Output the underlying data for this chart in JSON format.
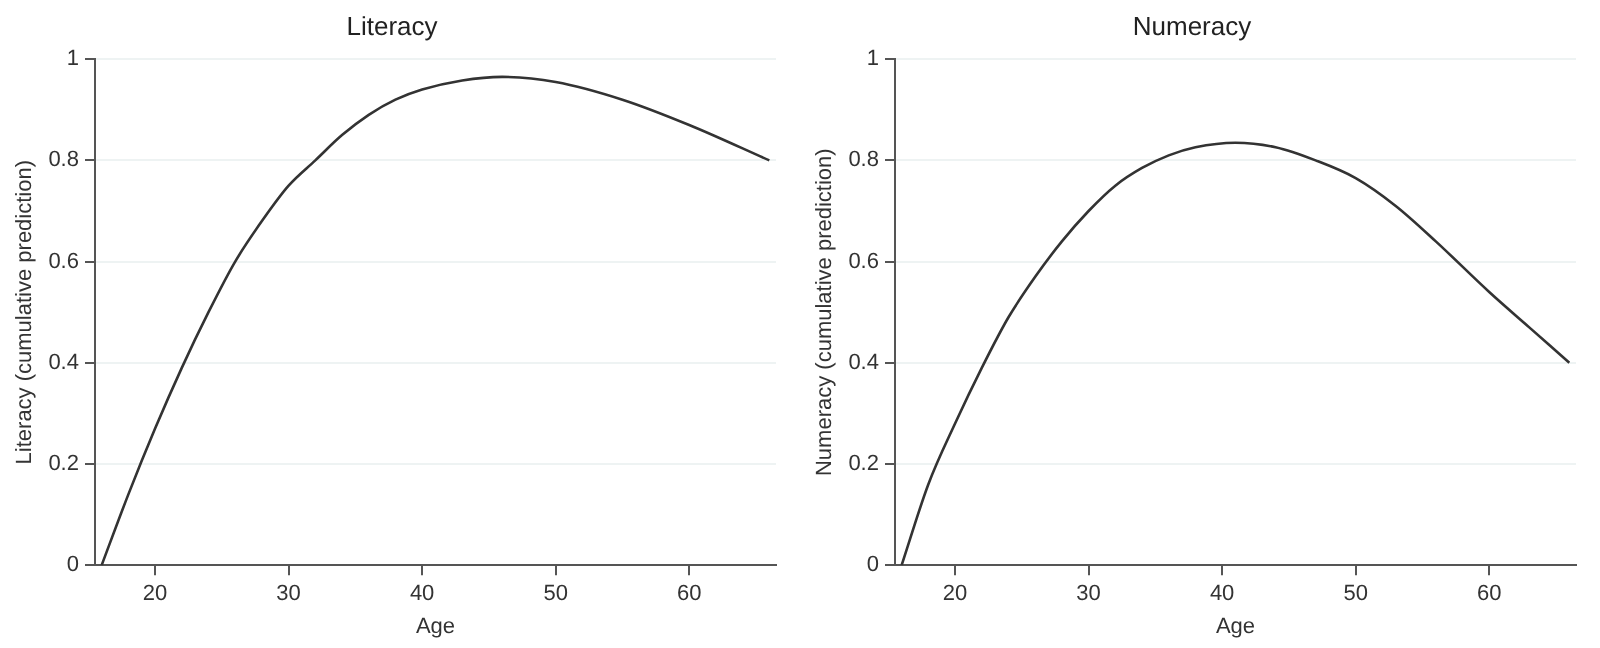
{
  "chart_data": [
    {
      "type": "line",
      "title": "Literacy",
      "xlabel": "Age",
      "ylabel": "Literacy (cumulative prediction)",
      "xlim": [
        15.5,
        66.5
      ],
      "xticks": [
        20,
        30,
        40,
        50,
        60
      ],
      "ylim": [
        0,
        1
      ],
      "yticks": [
        0,
        0.2,
        0.4,
        0.6,
        0.8,
        1
      ],
      "grid": "y",
      "legend": false,
      "series": [
        {
          "color": "#333333",
          "x": [
            16,
            18,
            20,
            22,
            24,
            26,
            28,
            30,
            32,
            34,
            36,
            38,
            40,
            43,
            46,
            50,
            55,
            60,
            66
          ],
          "values": [
            0,
            0.14,
            0.27,
            0.39,
            0.5,
            0.6,
            0.68,
            0.75,
            0.8,
            0.85,
            0.89,
            0.92,
            0.94,
            0.958,
            0.965,
            0.955,
            0.92,
            0.87,
            0.8
          ]
        }
      ]
    },
    {
      "type": "line",
      "title": "Numeracy",
      "xlabel": "Age",
      "ylabel": "Numeracy (cumulative prediction)",
      "xlim": [
        15.5,
        66.5
      ],
      "xticks": [
        20,
        30,
        40,
        50,
        60
      ],
      "ylim": [
        0,
        1
      ],
      "yticks": [
        0,
        0.2,
        0.4,
        0.6,
        0.8,
        1
      ],
      "grid": "y",
      "legend": false,
      "series": [
        {
          "color": "#333333",
          "x": [
            16,
            18,
            20,
            22,
            24,
            26,
            28,
            30,
            32,
            34,
            36,
            38,
            41,
            44,
            47,
            50,
            53,
            56,
            60,
            63,
            66
          ],
          "values": [
            0,
            0.16,
            0.28,
            0.39,
            0.49,
            0.57,
            0.64,
            0.7,
            0.75,
            0.785,
            0.81,
            0.826,
            0.835,
            0.826,
            0.8,
            0.765,
            0.71,
            0.64,
            0.54,
            0.47,
            0.4
          ]
        }
      ]
    }
  ]
}
